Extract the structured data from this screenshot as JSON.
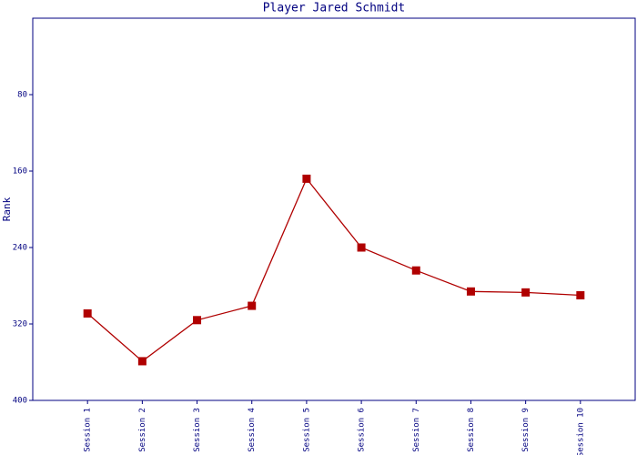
{
  "chart_data": {
    "type": "line",
    "title": "Player Jared Schmidt",
    "y_label": "Rank",
    "categories": [
      "Session 1",
      "Session 2",
      "Session 3",
      "Session 4",
      "Session 5",
      "Session 6",
      "Session 7",
      "Session 8",
      "Session 9",
      "Session 10"
    ],
    "series": [
      {
        "name": "Rank",
        "color": "#b00000",
        "values": [
          309,
          359,
          316,
          301,
          168,
          240,
          264,
          286,
          287,
          290
        ]
      }
    ],
    "ylim": [
      0,
      400
    ],
    "yticks": [
      80,
      160,
      240,
      320,
      400
    ],
    "y_inverted": true
  }
}
